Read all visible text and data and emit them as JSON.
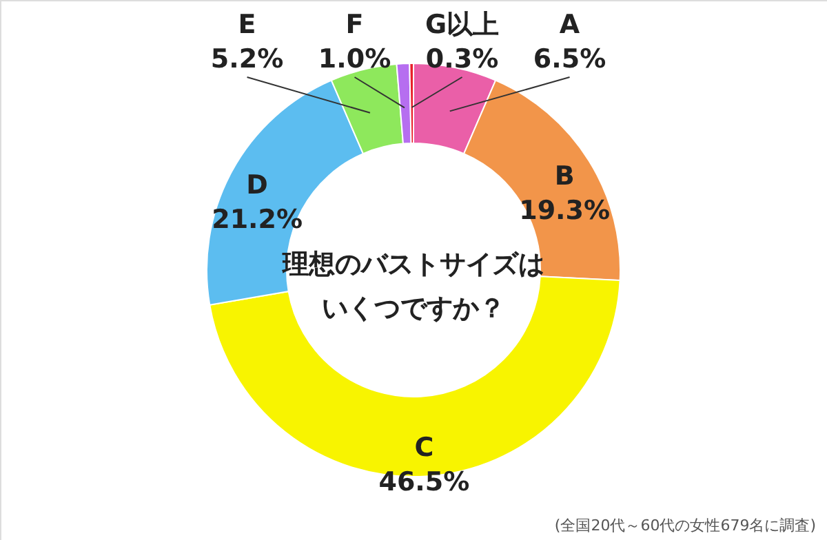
{
  "chart_data": {
    "type": "donut",
    "title": "理想のバストサイズはいくつですか？",
    "categories": [
      "A",
      "B",
      "C",
      "D",
      "E",
      "F",
      "G以上"
    ],
    "values": [
      6.5,
      19.3,
      46.5,
      21.2,
      5.2,
      1.0,
      0.3
    ],
    "value_labels": [
      "6.5%",
      "19.3%",
      "46.5%",
      "21.2%",
      "5.2%",
      "1.0%",
      "0.3%"
    ],
    "colors": [
      "#ea5fa8",
      "#f2954a",
      "#f8f400",
      "#5cbdf0",
      "#8ee85c",
      "#b66ef0",
      "#e8202a"
    ],
    "annotations": [
      "(全国20代～60代の女性679名に調査)"
    ]
  }
}
